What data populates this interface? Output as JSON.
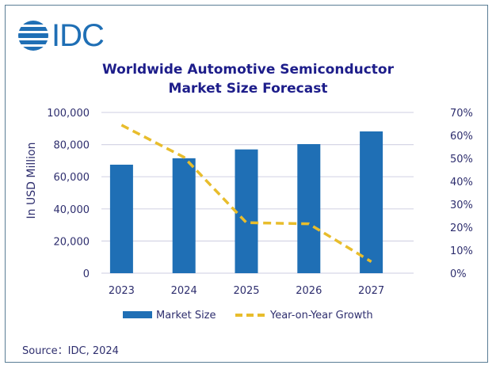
{
  "brand": {
    "logo_text": "IDC",
    "logo_color": "#1f6fb5"
  },
  "source_text": "Source：IDC, 2024",
  "chart_data": {
    "type": "bar",
    "title": "Worldwide Automotive Semiconductor Market Size Forecast",
    "title_lines": [
      "Worldwide Automotive Semiconductor",
      "Market Size Forecast"
    ],
    "xlabel": "",
    "ylabel": "In USD Million",
    "y2label": "",
    "categories": [
      "2023",
      "2024",
      "2025",
      "2026",
      "2027"
    ],
    "ylim": [
      0,
      100000
    ],
    "y_ticks": [
      0,
      20000,
      40000,
      60000,
      80000,
      100000
    ],
    "y_tick_labels": [
      "0",
      "20,000",
      "40,000",
      "60,000",
      "80,000",
      "100,000"
    ],
    "y2lim": [
      0,
      70
    ],
    "y2_ticks": [
      0,
      10,
      20,
      30,
      40,
      50,
      60,
      70
    ],
    "y2_tick_labels": [
      "0%",
      "10%",
      "20%",
      "30%",
      "40%",
      "50%",
      "60%",
      "70%"
    ],
    "grid": true,
    "legend_position": "bottom",
    "series": [
      {
        "name": "Market Size",
        "type": "bar",
        "axis": "left",
        "color": "#1f6fb5",
        "values": [
          67500,
          71500,
          77000,
          80300,
          88200
        ]
      },
      {
        "name": "Year-on-Year Growth",
        "type": "line",
        "style": "dashed",
        "axis": "right",
        "unit": "%",
        "color": "#e8bd2c",
        "values": [
          64.5,
          50.5,
          22.0,
          21.5,
          5.0
        ]
      }
    ]
  }
}
